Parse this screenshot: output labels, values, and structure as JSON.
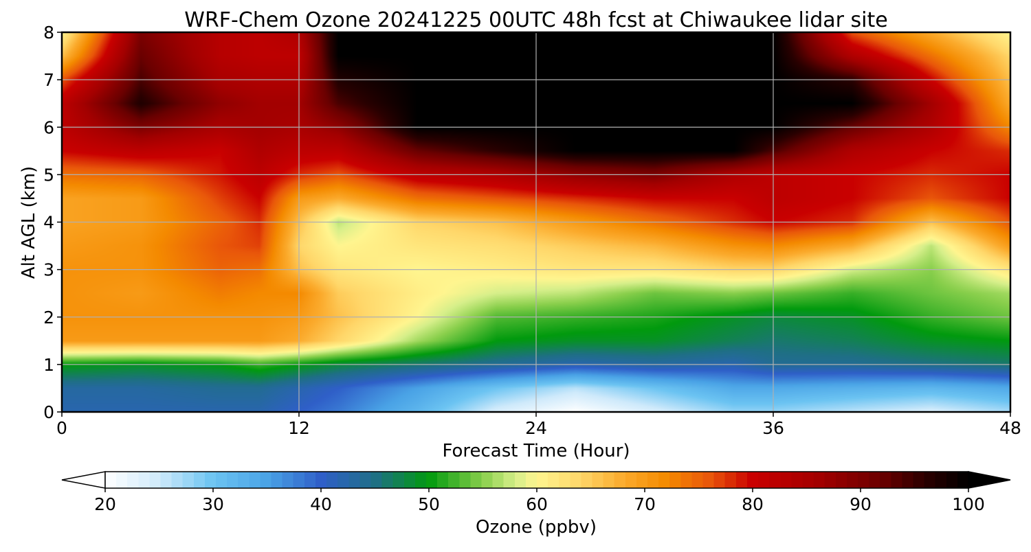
{
  "chart_data": {
    "type": "heatmap",
    "title": "WRF-Chem Ozone  20241225 00UTC 48h fcst at Chiwaukee lidar site",
    "xlabel": "Forecast Time (Hour)",
    "ylabel": "Alt AGL (km)",
    "xlim": [
      0,
      48
    ],
    "ylim": [
      0,
      8
    ],
    "xticks": [
      "0",
      "12",
      "24",
      "36",
      "48"
    ],
    "yticks": [
      "0",
      "1",
      "2",
      "3",
      "4",
      "5",
      "6",
      "7",
      "8"
    ],
    "grid": true,
    "colorbar": {
      "label": "Ozone  (ppbv)",
      "range": [
        20,
        100
      ],
      "ticks": [
        "20",
        "30",
        "40",
        "50",
        "60",
        "70",
        "80",
        "90",
        "100"
      ],
      "extend": "both",
      "stops": [
        [
          20,
          "#ffffff"
        ],
        [
          25,
          "#cfeafb"
        ],
        [
          30,
          "#6cc4f2"
        ],
        [
          35,
          "#4aa3e6"
        ],
        [
          40,
          "#2f5fc8"
        ],
        [
          45,
          "#1f6f86"
        ],
        [
          50,
          "#019a0e"
        ],
        [
          55,
          "#89cf4c"
        ],
        [
          58,
          "#d6ef8a"
        ],
        [
          60,
          "#fff58f"
        ],
        [
          64,
          "#ffd76a"
        ],
        [
          68,
          "#fbab2d"
        ],
        [
          72,
          "#f48a00"
        ],
        [
          76,
          "#e9570a"
        ],
        [
          80,
          "#c90000"
        ],
        [
          86,
          "#a30000"
        ],
        [
          92,
          "#6a0000"
        ],
        [
          96,
          "#2a0000"
        ],
        [
          100,
          "#000000"
        ]
      ]
    },
    "z_levels_km": [
      0,
      0.5,
      1,
      1.5,
      2,
      2.5,
      3,
      3.5,
      4,
      4.5,
      5,
      5.5,
      6,
      6.5,
      7,
      7.5,
      8
    ],
    "profiles": [
      {
        "hour": 0,
        "ozone_ppbv": [
          42,
          43,
          50,
          70,
          71,
          71,
          71,
          70,
          69,
          69,
          74,
          80,
          82,
          82,
          76,
          66,
          60
        ]
      },
      {
        "hour": 4,
        "ozone_ppbv": [
          42,
          43,
          49,
          70,
          71,
          70,
          71,
          71,
          70,
          70,
          75,
          82,
          90,
          97,
          94,
          92,
          90
        ]
      },
      {
        "hour": 8,
        "ozone_ppbv": [
          42,
          44,
          50,
          70,
          71,
          73,
          75,
          76,
          75,
          77,
          79,
          80,
          85,
          88,
          85,
          83,
          83
        ]
      },
      {
        "hour": 10,
        "ozone_ppbv": [
          42,
          44,
          52,
          70,
          71,
          72,
          74,
          77,
          78,
          80,
          82,
          84,
          86,
          86,
          84,
          82,
          82
        ]
      },
      {
        "hour": 12,
        "ozone_ppbv": [
          40,
          42,
          50,
          68,
          70,
          72,
          66,
          64,
          66,
          70,
          78,
          82,
          85,
          86,
          84,
          82,
          84
        ]
      },
      {
        "hour": 14,
        "ozone_ppbv": [
          38,
          40,
          48,
          64,
          66,
          65,
          62,
          60,
          57,
          68,
          76,
          82,
          88,
          94,
          97,
          100,
          100
        ]
      },
      {
        "hour": 18,
        "ozone_ppbv": [
          32,
          35,
          46,
          56,
          60,
          61,
          60,
          62,
          64,
          74,
          82,
          92,
          100,
          100,
          100,
          100,
          100
        ]
      },
      {
        "hour": 22,
        "ozone_ppbv": [
          24,
          30,
          44,
          50,
          53,
          58,
          61,
          63,
          66,
          76,
          84,
          96,
          100,
          100,
          100,
          100,
          100
        ]
      },
      {
        "hour": 26,
        "ozone_ppbv": [
          20,
          26,
          42,
          49,
          52,
          57,
          62,
          65,
          70,
          78,
          88,
          100,
          100,
          100,
          100,
          100,
          100
        ]
      },
      {
        "hour": 30,
        "ozone_ppbv": [
          24,
          30,
          43,
          49,
          51,
          54,
          62,
          67,
          74,
          80,
          90,
          100,
          100,
          100,
          100,
          100,
          100
        ]
      },
      {
        "hour": 34,
        "ozone_ppbv": [
          28,
          34,
          42,
          47,
          49,
          55,
          64,
          71,
          78,
          80,
          84,
          100,
          100,
          100,
          100,
          100,
          100
        ]
      },
      {
        "hour": 36,
        "ozone_ppbv": [
          28,
          34,
          44,
          46,
          48,
          54,
          64,
          72,
          80,
          82,
          82,
          94,
          100,
          100,
          100,
          100,
          100
        ]
      },
      {
        "hour": 40,
        "ozone_ppbv": [
          26,
          33,
          44,
          47,
          49,
          52,
          58,
          68,
          78,
          80,
          80,
          84,
          92,
          100,
          96,
          84,
          76
        ]
      },
      {
        "hour": 44,
        "ozone_ppbv": [
          24,
          32,
          45,
          49,
          52,
          54,
          55,
          57,
          66,
          76,
          78,
          80,
          84,
          86,
          80,
          74,
          68
        ]
      },
      {
        "hour": 48,
        "ozone_ppbv": [
          27,
          34,
          46,
          50,
          54,
          56,
          62,
          70,
          76,
          80,
          80,
          78,
          72,
          68,
          66,
          64,
          60
        ]
      }
    ]
  }
}
